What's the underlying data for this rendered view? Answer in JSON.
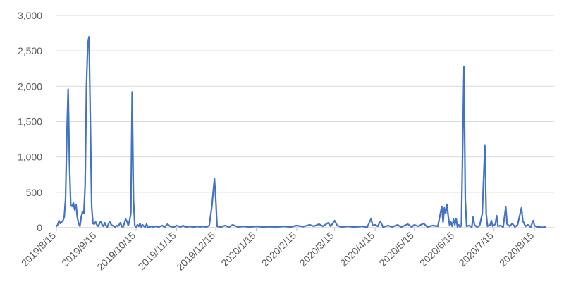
{
  "chart_data": {
    "type": "line",
    "title": "",
    "xlabel": "",
    "ylabel": "",
    "ylim": [
      0,
      3000
    ],
    "yticks": [
      0,
      500,
      1000,
      1500,
      2000,
      2500,
      3000
    ],
    "ytick_labels": [
      "0",
      "500",
      "1,000",
      "1,500",
      "2,000",
      "2,500",
      "3,000"
    ],
    "xlim": [
      "2019-08-15",
      "2020-08-30"
    ],
    "xticks": [
      "2019-08-15",
      "2019-09-15",
      "2019-10-15",
      "2019-11-15",
      "2019-12-15",
      "2020-01-15",
      "2020-02-15",
      "2020-03-15",
      "2020-04-15",
      "2020-05-15",
      "2020-06-15",
      "2020-07-15",
      "2020-08-15"
    ],
    "xtick_labels": [
      "2019/8/15",
      "2019/9/15",
      "2019/10/15",
      "2019/11/15",
      "2019/12/15",
      "2020/1/15",
      "2020/2/15",
      "2020/3/15",
      "2020/4/15",
      "2020/5/15",
      "2020/6/15",
      "2020/7/15",
      "2020/8/15"
    ],
    "grid": true,
    "legend": "none",
    "color": "#4472c4",
    "series": [
      {
        "points": [
          [
            "2019-08-15",
            20
          ],
          [
            "2019-08-16",
            40
          ],
          [
            "2019-08-17",
            100
          ],
          [
            "2019-08-18",
            60
          ],
          [
            "2019-08-19",
            80
          ],
          [
            "2019-08-20",
            100
          ],
          [
            "2019-08-21",
            150
          ],
          [
            "2019-08-22",
            400
          ],
          [
            "2019-08-23",
            1300
          ],
          [
            "2019-08-24",
            1960
          ],
          [
            "2019-08-25",
            900
          ],
          [
            "2019-08-26",
            320
          ],
          [
            "2019-08-27",
            300
          ],
          [
            "2019-08-28",
            350
          ],
          [
            "2019-08-29",
            250
          ],
          [
            "2019-08-30",
            330
          ],
          [
            "2019-08-31",
            150
          ],
          [
            "2019-09-01",
            60
          ],
          [
            "2019-09-02",
            20
          ],
          [
            "2019-09-03",
            150
          ],
          [
            "2019-09-04",
            230
          ],
          [
            "2019-09-05",
            200
          ],
          [
            "2019-09-06",
            600
          ],
          [
            "2019-09-07",
            2000
          ],
          [
            "2019-09-08",
            2600
          ],
          [
            "2019-09-09",
            2700
          ],
          [
            "2019-09-10",
            1500
          ],
          [
            "2019-09-11",
            300
          ],
          [
            "2019-09-12",
            60
          ],
          [
            "2019-09-13",
            50
          ],
          [
            "2019-09-14",
            80
          ],
          [
            "2019-09-15",
            40
          ],
          [
            "2019-09-16",
            20
          ],
          [
            "2019-09-17",
            60
          ],
          [
            "2019-09-18",
            90
          ],
          [
            "2019-09-19",
            40
          ],
          [
            "2019-09-20",
            20
          ],
          [
            "2019-09-21",
            70
          ],
          [
            "2019-09-22",
            30
          ],
          [
            "2019-09-23",
            10
          ],
          [
            "2019-09-24",
            60
          ],
          [
            "2019-09-25",
            80
          ],
          [
            "2019-09-26",
            40
          ],
          [
            "2019-09-27",
            30
          ],
          [
            "2019-09-28",
            20
          ],
          [
            "2019-09-29",
            10
          ],
          [
            "2019-09-30",
            30
          ],
          [
            "2019-10-01",
            20
          ],
          [
            "2019-10-02",
            40
          ],
          [
            "2019-10-03",
            70
          ],
          [
            "2019-10-04",
            20
          ],
          [
            "2019-10-05",
            10
          ],
          [
            "2019-10-06",
            60
          ],
          [
            "2019-10-07",
            120
          ],
          [
            "2019-10-08",
            90
          ],
          [
            "2019-10-09",
            30
          ],
          [
            "2019-10-10",
            100
          ],
          [
            "2019-10-11",
            200
          ],
          [
            "2019-10-12",
            1920
          ],
          [
            "2019-10-13",
            400
          ],
          [
            "2019-10-14",
            30
          ],
          [
            "2019-10-15",
            10
          ],
          [
            "2019-10-16",
            40
          ],
          [
            "2019-10-17",
            20
          ],
          [
            "2019-10-18",
            60
          ],
          [
            "2019-10-19",
            10
          ],
          [
            "2019-10-20",
            40
          ],
          [
            "2019-10-21",
            20
          ],
          [
            "2019-10-22",
            10
          ],
          [
            "2019-10-23",
            50
          ],
          [
            "2019-10-24",
            10
          ],
          [
            "2019-10-25",
            0
          ],
          [
            "2019-10-26",
            20
          ],
          [
            "2019-10-28",
            10
          ],
          [
            "2019-10-30",
            20
          ],
          [
            "2019-11-01",
            10
          ],
          [
            "2019-11-04",
            30
          ],
          [
            "2019-11-06",
            10
          ],
          [
            "2019-11-08",
            50
          ],
          [
            "2019-11-10",
            20
          ],
          [
            "2019-11-13",
            10
          ],
          [
            "2019-11-15",
            30
          ],
          [
            "2019-11-18",
            10
          ],
          [
            "2019-11-20",
            30
          ],
          [
            "2019-11-22",
            10
          ],
          [
            "2019-11-25",
            20
          ],
          [
            "2019-11-28",
            10
          ],
          [
            "2019-12-01",
            20
          ],
          [
            "2019-12-03",
            10
          ],
          [
            "2019-12-05",
            20
          ],
          [
            "2019-12-08",
            10
          ],
          [
            "2019-12-10",
            30
          ],
          [
            "2019-12-12",
            300
          ],
          [
            "2019-12-13",
            500
          ],
          [
            "2019-12-14",
            690
          ],
          [
            "2019-12-15",
            400
          ],
          [
            "2019-12-16",
            20
          ],
          [
            "2019-12-19",
            10
          ],
          [
            "2019-12-22",
            30
          ],
          [
            "2019-12-25",
            10
          ],
          [
            "2019-12-28",
            40
          ],
          [
            "2020-01-01",
            10
          ],
          [
            "2020-01-05",
            20
          ],
          [
            "2020-01-10",
            10
          ],
          [
            "2020-01-15",
            20
          ],
          [
            "2020-01-20",
            10
          ],
          [
            "2020-01-25",
            15
          ],
          [
            "2020-01-30",
            10
          ],
          [
            "2020-02-05",
            20
          ],
          [
            "2020-02-10",
            10
          ],
          [
            "2020-02-15",
            30
          ],
          [
            "2020-02-20",
            15
          ],
          [
            "2020-02-25",
            40
          ],
          [
            "2020-02-28",
            20
          ],
          [
            "2020-03-03",
            50
          ],
          [
            "2020-03-06",
            20
          ],
          [
            "2020-03-10",
            70
          ],
          [
            "2020-03-12",
            20
          ],
          [
            "2020-03-15",
            100
          ],
          [
            "2020-03-17",
            30
          ],
          [
            "2020-03-20",
            10
          ],
          [
            "2020-03-25",
            20
          ],
          [
            "2020-03-30",
            10
          ],
          [
            "2020-04-05",
            20
          ],
          [
            "2020-04-09",
            10
          ],
          [
            "2020-04-12",
            130
          ],
          [
            "2020-04-13",
            30
          ],
          [
            "2020-04-15",
            40
          ],
          [
            "2020-04-17",
            20
          ],
          [
            "2020-04-19",
            90
          ],
          [
            "2020-04-21",
            10
          ],
          [
            "2020-04-25",
            30
          ],
          [
            "2020-04-28",
            10
          ],
          [
            "2020-05-02",
            40
          ],
          [
            "2020-05-05",
            10
          ],
          [
            "2020-05-10",
            50
          ],
          [
            "2020-05-13",
            10
          ],
          [
            "2020-05-15",
            40
          ],
          [
            "2020-05-18",
            20
          ],
          [
            "2020-05-22",
            60
          ],
          [
            "2020-05-25",
            10
          ],
          [
            "2020-05-29",
            30
          ],
          [
            "2020-06-02",
            20
          ],
          [
            "2020-06-05",
            300
          ],
          [
            "2020-06-06",
            80
          ],
          [
            "2020-06-07",
            280
          ],
          [
            "2020-06-08",
            200
          ],
          [
            "2020-06-09",
            330
          ],
          [
            "2020-06-10",
            150
          ],
          [
            "2020-06-11",
            30
          ],
          [
            "2020-06-12",
            80
          ],
          [
            "2020-06-13",
            20
          ],
          [
            "2020-06-14",
            120
          ],
          [
            "2020-06-15",
            40
          ],
          [
            "2020-06-16",
            130
          ],
          [
            "2020-06-17",
            10
          ],
          [
            "2020-06-18",
            40
          ],
          [
            "2020-06-19",
            10
          ],
          [
            "2020-06-20",
            30
          ],
          [
            "2020-06-22",
            2280
          ],
          [
            "2020-06-23",
            400
          ],
          [
            "2020-06-24",
            20
          ],
          [
            "2020-06-26",
            30
          ],
          [
            "2020-06-28",
            10
          ],
          [
            "2020-06-29",
            150
          ],
          [
            "2020-06-30",
            40
          ],
          [
            "2020-07-02",
            10
          ],
          [
            "2020-07-04",
            30
          ],
          [
            "2020-07-06",
            200
          ],
          [
            "2020-07-08",
            1160
          ],
          [
            "2020-07-09",
            200
          ],
          [
            "2020-07-10",
            20
          ],
          [
            "2020-07-12",
            40
          ],
          [
            "2020-07-13",
            100
          ],
          [
            "2020-07-14",
            20
          ],
          [
            "2020-07-16",
            50
          ],
          [
            "2020-07-17",
            170
          ],
          [
            "2020-07-18",
            20
          ],
          [
            "2020-07-20",
            30
          ],
          [
            "2020-07-22",
            10
          ],
          [
            "2020-07-24",
            290
          ],
          [
            "2020-07-25",
            50
          ],
          [
            "2020-07-27",
            20
          ],
          [
            "2020-07-29",
            60
          ],
          [
            "2020-07-31",
            10
          ],
          [
            "2020-08-02",
            40
          ],
          [
            "2020-08-04",
            200
          ],
          [
            "2020-08-05",
            280
          ],
          [
            "2020-08-06",
            100
          ],
          [
            "2020-08-08",
            20
          ],
          [
            "2020-08-10",
            40
          ],
          [
            "2020-08-12",
            10
          ],
          [
            "2020-08-14",
            100
          ],
          [
            "2020-08-15",
            30
          ],
          [
            "2020-08-17",
            10
          ],
          [
            "2020-08-19",
            10
          ],
          [
            "2020-08-21",
            5
          ],
          [
            "2020-08-23",
            10
          ]
        ]
      }
    ]
  }
}
